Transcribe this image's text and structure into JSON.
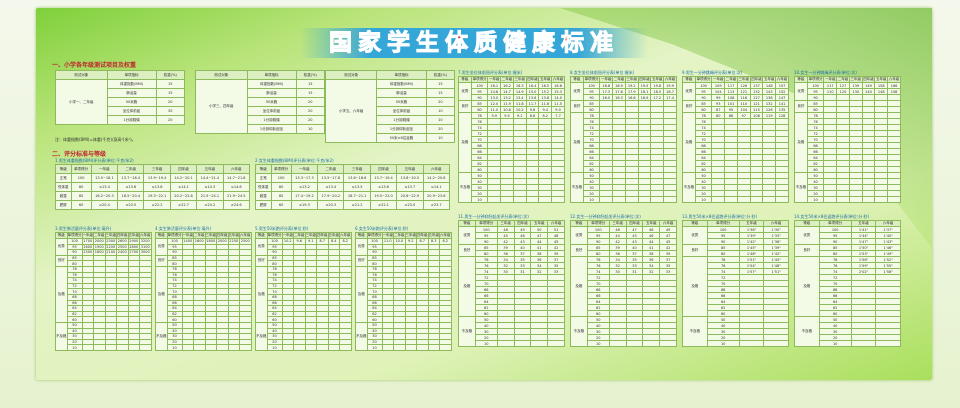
{
  "title": "国家学生体质健康标准",
  "section1": "一、小学各年级测试项目及权重",
  "section2": "二、评分标准与等级",
  "note": "注：体重指数(BMI)=体重(千克)/身高²(米²)。",
  "tables": [
    {
      "id": "w1",
      "title": "",
      "headers": [
        "测试对象",
        "单项指标",
        "权重(%)"
      ],
      "groups": [
        {
          "grade": "小学一、二年级",
          "rows": [
            [
              "体重指数(BMI)",
              "15"
            ],
            [
              "肺活量",
              "15"
            ],
            [
              "50米跑",
              "20"
            ],
            [
              "坐位体前屈",
              "30"
            ],
            [
              "1分钟跳绳",
              "20"
            ]
          ]
        }
      ]
    },
    {
      "id": "w2",
      "title": "",
      "headers": [
        "测试对象",
        "单项指标",
        "权重(%)"
      ],
      "groups": [
        {
          "grade": "小学三、四年级",
          "rows": [
            [
              "体重指数(BMI)",
              "15"
            ],
            [
              "肺活量",
              "15"
            ],
            [
              "50米跑",
              "20"
            ],
            [
              "坐位体前屈",
              "20"
            ],
            [
              "1分钟跳绳",
              "20"
            ],
            [
              "1分钟仰卧起坐",
              "10"
            ]
          ]
        }
      ]
    },
    {
      "id": "w3",
      "title": "",
      "headers": [
        "测试对象",
        "单项指标",
        "权重(%)"
      ],
      "groups": [
        {
          "grade": "小学五、六年级",
          "rows": [
            [
              "体重指数(BMI)",
              "15"
            ],
            [
              "肺活量",
              "15"
            ],
            [
              "50米跑",
              "20"
            ],
            [
              "坐位体前屈",
              "10"
            ],
            [
              "1分钟跳绳",
              "10"
            ],
            [
              "1分钟仰卧起坐",
              "20"
            ],
            [
              "50米×8往返跑",
              "10"
            ]
          ]
        }
      ]
    },
    {
      "id": "b1",
      "title": "1.男生体重指数(BMI)评分表(单位:千克/米2)",
      "headers": [
        "等级",
        "单项得分",
        "一年级",
        "二年级",
        "三年级",
        "四年级",
        "五年级",
        "六年级"
      ],
      "groups": [
        {
          "grade": "正常",
          "rows": [
            [
              "100",
              "13.5~18.1",
              "13.7~18.4",
              "13.9~19.4",
              "14.2~20.1",
              "14.4~21.4",
              "14.7~21.8"
            ]
          ]
        },
        {
          "grade": "低体重",
          "rows": [
            [
              "80",
              "≤13.4",
              "≤13.6",
              "≤13.8",
              "≤14.1",
              "≤14.3",
              "≤14.6"
            ]
          ]
        },
        {
          "grade": "超重",
          "rows": [
            [
              "80",
              "18.2~20.3",
              "18.5~20.4",
              "19.5~22.1",
              "20.2~22.6",
              "21.5~24.1",
              "21.9~24.5"
            ]
          ]
        },
        {
          "grade": "肥胖",
          "rows": [
            [
              "60",
              "≥20.4",
              "≥20.5",
              "≥22.2",
              "≥22.7",
              "≥24.2",
              "≥24.6"
            ]
          ]
        }
      ]
    },
    {
      "id": "b2",
      "title": "2.女生体重指数(BMI)评分表(单位:千克/米2)",
      "headers": [
        "等级",
        "单项得分",
        "一年级",
        "二年级",
        "三年级",
        "四年级",
        "五年级",
        "六年级"
      ],
      "groups": [
        {
          "grade": "正常",
          "rows": [
            [
              "100",
              "13.3~17.3",
              "13.5~17.8",
              "13.6~18.6",
              "13.7~19.4",
              "13.8~20.5",
              "14.2~20.8"
            ]
          ]
        },
        {
          "grade": "低体重",
          "rows": [
            [
              "80",
              "≤13.2",
              "≤13.4",
              "≤13.5",
              "≤13.6",
              "≤13.7",
              "≤14.1"
            ]
          ]
        },
        {
          "grade": "超重",
          "rows": [
            [
              "80",
              "17.4~19.2",
              "17.9~20.2",
              "18.7~21.1",
              "19.5~22.0",
              "20.6~22.9",
              "20.9~23.6"
            ]
          ]
        },
        {
          "grade": "肥胖",
          "rows": [
            [
              "60",
              "≥19.3",
              "≥20.3",
              "≥21.2",
              "≥22.1",
              "≥23.0",
              "≥23.7"
            ]
          ]
        }
      ]
    },
    {
      "id": "s3",
      "title": "3.男生肺活量评分表(单位:毫升)",
      "headers": [
        "等级",
        "单项得分",
        "一年级",
        "二年级",
        "三年级",
        "四年级",
        "五年级",
        "六年级"
      ],
      "first": [
        [
          "100",
          "1700",
          "2000",
          "2300",
          "2600",
          "2900",
          "3200"
        ],
        [
          "95",
          "1600",
          "1900",
          "2200",
          "2500",
          "2800",
          "3100"
        ],
        [
          "90",
          "1500",
          "1800",
          "2100",
          "2400",
          "2700",
          "3000"
        ]
      ]
    },
    {
      "id": "s4",
      "title": "4.女生肺活量评分表(单位:毫升)",
      "headers": [
        "等级",
        "单项得分",
        "一年级",
        "二年级",
        "三年级",
        "四年级",
        "五年级",
        "六年级"
      ],
      "first": [
        [
          "100",
          "1400",
          "1600",
          "1800",
          "2000",
          "2250",
          "2500"
        ]
      ]
    },
    {
      "id": "s5",
      "title": "5.男生50米跑评分表(单位:秒)",
      "headers": [
        "等级",
        "单项得分",
        "一年级",
        "二年级",
        "三年级",
        "四年级",
        "五年级",
        "六年级"
      ],
      "first": [
        [
          "100",
          "10.2",
          "9.6",
          "9.1",
          "8.7",
          "8.4",
          "8.2"
        ]
      ]
    },
    {
      "id": "s6",
      "title": "6.女生50米跑评分表(单位:秒)",
      "headers": [
        "等级",
        "单项得分",
        "一年级",
        "二年级",
        "三年级",
        "四年级",
        "五年级",
        "六年级"
      ],
      "first": [
        [
          "100",
          "11.0",
          "10.0",
          "9.2",
          "8.7",
          "8.3",
          "8.2"
        ]
      ]
    },
    {
      "id": "s7",
      "title": "7.男生坐位体前屈评分表(单位:厘米)",
      "headers": [
        "等级",
        "单项得分",
        "一年级",
        "二年级",
        "三年级",
        "四年级",
        "五年级",
        "六年级"
      ],
      "first": [
        [
          "100",
          "16.1",
          "16.2",
          "16.3",
          "16.4",
          "16.5",
          "16.6"
        ],
        [
          "95",
          "14.6",
          "14.7",
          "14.9",
          "15.0",
          "15.2",
          "15.3"
        ],
        [
          "90",
          "13.0",
          "13.2",
          "13.4",
          "13.6",
          "13.8",
          "14.0"
        ],
        [
          "85",
          "12.0",
          "11.9",
          "11.8",
          "11.7",
          "11.6",
          "11.5"
        ],
        [
          "80",
          "11.0",
          "10.6",
          "10.2",
          "9.8",
          "9.4",
          "9.0"
        ],
        [
          "78",
          "9.9",
          "9.5",
          "9.1",
          "8.6",
          "8.2",
          "7.7"
        ]
      ]
    },
    {
      "id": "s8",
      "title": "8.女生坐位体前屈评分表(单位:厘米)",
      "headers": [
        "等级",
        "单项得分",
        "一年级",
        "二年级",
        "三年级",
        "四年级",
        "五年级",
        "六年级"
      ],
      "first": [
        [
          "100",
          "18.6",
          "18.9",
          "19.2",
          "19.5",
          "19.8",
          "19.9"
        ],
        [
          "95",
          "17.3",
          "17.6",
          "17.9",
          "18.1",
          "18.5",
          "18.7"
        ],
        [
          "90",
          "16.0",
          "16.3",
          "16.6",
          "16.9",
          "17.2",
          "17.4"
        ]
      ]
    },
    {
      "id": "s9",
      "title": "9.男生一分钟跳绳评分表(单位:次)",
      "headers": [
        "等级",
        "单项得分",
        "一年级",
        "二年级",
        "三年级",
        "四年级",
        "五年级",
        "六年级"
      ],
      "first": [
        [
          "100",
          "109",
          "117",
          "126",
          "137",
          "148",
          "157"
        ],
        [
          "95",
          "104",
          "113",
          "121",
          "132",
          "143",
          "152"
        ],
        [
          "90",
          "99",
          "108",
          "116",
          "127",
          "138",
          "147"
        ],
        [
          "85",
          "93",
          "101",
          "110",
          "121",
          "132",
          "141"
        ],
        [
          "80",
          "87",
          "95",
          "104",
          "115",
          "126",
          "135"
        ],
        [
          "78",
          "80",
          "88",
          "97",
          "108",
          "119",
          "128"
        ]
      ]
    },
    {
      "id": "s10",
      "title": "10.女生一分钟跳绳评分表(单位:次)",
      "headers": [
        "等级",
        "单项得分",
        "一年级",
        "二年级",
        "三年级",
        "四年级",
        "五年级",
        "六年级"
      ],
      "first": [
        [
          "100",
          "117",
          "127",
          "139",
          "149",
          "158",
          "166"
        ],
        [
          "95",
          "110",
          "120",
          "130",
          "140",
          "148",
          "158"
        ]
      ]
    },
    {
      "id": "s11",
      "title": "11.男生一分钟仰卧起坐评分表(单位:次)",
      "headers": [
        "等级",
        "单项得分",
        "三年级",
        "四年级",
        "五年级",
        "六年级"
      ],
      "first": [
        [
          "100",
          "48",
          "49",
          "50",
          "51"
        ],
        [
          "95",
          "45",
          "46",
          "47",
          "48"
        ],
        [
          "90",
          "42",
          "43",
          "44",
          "45"
        ],
        [
          "85",
          "39",
          "40",
          "41",
          "42"
        ],
        [
          "80",
          "36",
          "37",
          "38",
          "39"
        ],
        [
          "78",
          "34",
          "35",
          "36",
          "37"
        ],
        [
          "76",
          "32",
          "33",
          "34",
          "35"
        ],
        [
          "74",
          "30",
          "31",
          "32",
          "33"
        ]
      ]
    },
    {
      "id": "s12",
      "title": "12.女生一分钟仰卧起坐评分表(单位:次)",
      "headers": [
        "等级",
        "单项得分",
        "三年级",
        "四年级",
        "五年级",
        "六年级"
      ],
      "first": [
        [
          "100",
          "46",
          "47",
          "48",
          "49"
        ],
        [
          "95",
          "44",
          "45",
          "46",
          "47"
        ],
        [
          "90",
          "42",
          "43",
          "44",
          "45"
        ],
        [
          "85",
          "39",
          "40",
          "41",
          "42"
        ],
        [
          "80",
          "36",
          "37",
          "38",
          "39"
        ],
        [
          "78",
          "34",
          "35",
          "36",
          "37"
        ],
        [
          "76",
          "32",
          "33",
          "34",
          "35"
        ],
        [
          "74",
          "30",
          "31",
          "32",
          "33"
        ]
      ]
    },
    {
      "id": "s13",
      "title": "13.男生50米×8往返跑评分表(单位:分·秒)",
      "headers": [
        "等级",
        "单项得分",
        "五年级",
        "六年级"
      ],
      "first": [
        [
          "100",
          "1'36\"",
          "1'30\""
        ],
        [
          "95",
          "1'39\"",
          "1'33\""
        ],
        [
          "90",
          "1'42\"",
          "1'36\""
        ],
        [
          "85",
          "1'45\"",
          "1'39\""
        ],
        [
          "80",
          "1'48\"",
          "1'42\""
        ],
        [
          "78",
          "1'51\"",
          "1'45\""
        ],
        [
          "76",
          "1'54\"",
          "1'48\""
        ],
        [
          "74",
          "1'57\"",
          "1'51\""
        ]
      ]
    },
    {
      "id": "s14",
      "title": "14.女生50米×8往返跑评分表(单位:分·秒)",
      "headers": [
        "等级",
        "单项得分",
        "五年级",
        "六年级"
      ],
      "first": [
        [
          "100",
          "1'41\"",
          "1'37\""
        ],
        [
          "95",
          "1'44\"",
          "1'40\""
        ],
        [
          "90",
          "1'47\"",
          "1'43\""
        ],
        [
          "85",
          "1'50\"",
          "1'46\""
        ],
        [
          "80",
          "1'53\"",
          "1'49\""
        ],
        [
          "78",
          "1'56\"",
          "1'52\""
        ],
        [
          "76",
          "1'59\"",
          "1'55\""
        ],
        [
          "74",
          "2'02\"",
          "1'58\""
        ]
      ]
    }
  ],
  "score_groups": [
    {
      "grade": "优秀",
      "scores": [
        "100",
        "95",
        "90"
      ]
    },
    {
      "grade": "良好",
      "scores": [
        "85",
        "80"
      ]
    },
    {
      "grade": "及格",
      "scores": [
        "78",
        "76",
        "74",
        "72",
        "70",
        "68",
        "66",
        "64",
        "62",
        "60"
      ]
    },
    {
      "grade": "不及格",
      "scores": [
        "50",
        "40",
        "30",
        "20",
        "10"
      ]
    }
  ],
  "colors": {
    "title": "#d61f2a",
    "title_band": "#35a6d8",
    "section": "#c2262e",
    "table_title": "#1b6ea8",
    "border": "#8dbb5c"
  }
}
